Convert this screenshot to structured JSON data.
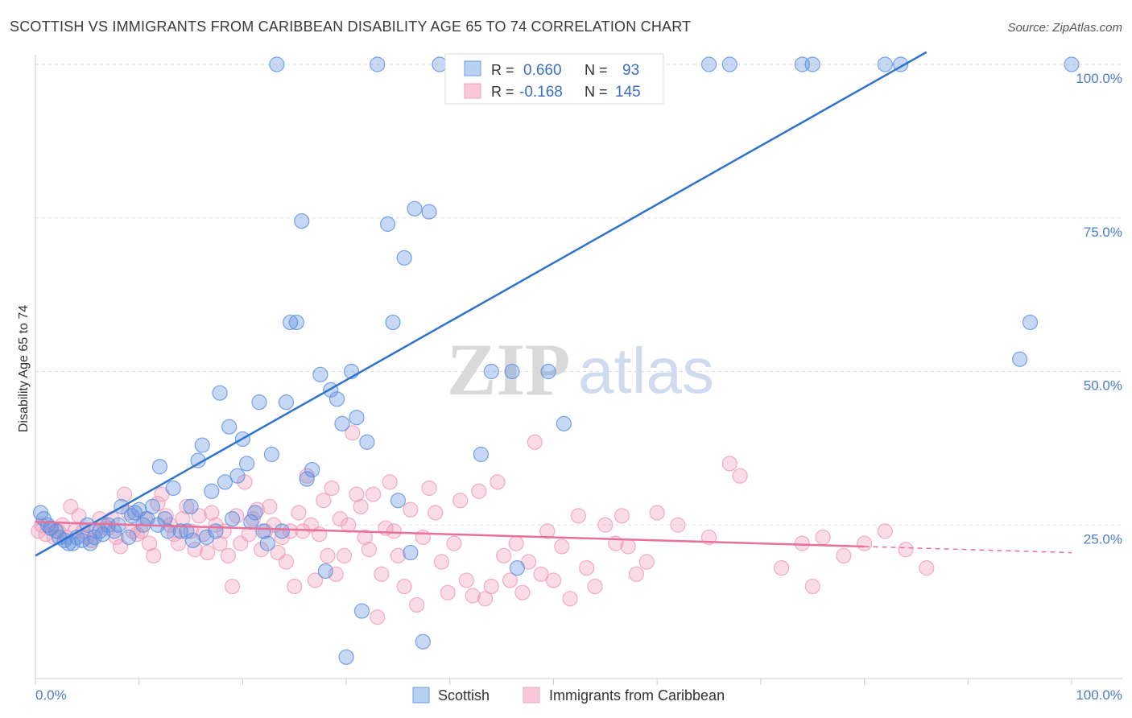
{
  "header": {
    "title": "SCOTTISH VS IMMIGRANTS FROM CARIBBEAN DISABILITY AGE 65 TO 74 CORRELATION CHART",
    "source": "Source: ZipAtlas.com"
  },
  "watermark": {
    "zip": "ZIP",
    "atlas": "atlas"
  },
  "legend_box": {
    "rows": [
      {
        "r_label": "R =",
        "r_value": "0.660",
        "n_label": "N =",
        "n_value": "93",
        "color": "#6b9be0"
      },
      {
        "r_label": "R =",
        "r_value": "-0.168",
        "n_label": "N =",
        "n_value": "145",
        "color": "#f0a0bc"
      }
    ]
  },
  "bottom_legend": [
    {
      "label": "Scottish",
      "color": "#6b9be0"
    },
    {
      "label": "Immigrants from Caribbean",
      "color": "#f0a0bc"
    }
  ],
  "chart_data": {
    "type": "scatter",
    "ylabel": "Disability Age 65 to 74",
    "xlabel": "",
    "x_tick_labels": {
      "left": "0.0%",
      "right": "100.0%"
    },
    "y_tick_labels": [
      "100.0%",
      "75.0%",
      "50.0%",
      "25.0%"
    ],
    "y_ticks": [
      100,
      75,
      50,
      25
    ],
    "xlim": [
      0,
      100
    ],
    "ylim": [
      0,
      100
    ],
    "grid": "horizontal dashed",
    "colors": {
      "scottish": "#5b8ee0",
      "caribbean": "#ef9bb8",
      "scottish_line": "#2f72d0",
      "caribbean_line": "#e8709a"
    },
    "series": [
      {
        "name": "Scottish",
        "trend": {
          "x0": 0,
          "y0": 20,
          "x1": 86,
          "y1": 102
        },
        "points": [
          [
            0.5,
            27
          ],
          [
            0.8,
            26
          ],
          [
            1.2,
            25
          ],
          [
            1.5,
            24.5
          ],
          [
            2,
            24
          ],
          [
            2.3,
            23
          ],
          [
            2.8,
            22.5
          ],
          [
            3.2,
            22
          ],
          [
            3.6,
            22
          ],
          [
            4,
            23
          ],
          [
            4.5,
            22.5
          ],
          [
            5,
            25
          ],
          [
            5.3,
            22
          ],
          [
            5.7,
            23
          ],
          [
            6.2,
            24
          ],
          [
            6.5,
            23.5
          ],
          [
            7,
            25
          ],
          [
            7.6,
            24
          ],
          [
            8,
            25
          ],
          [
            8.3,
            28
          ],
          [
            9,
            23
          ],
          [
            9.3,
            26.5
          ],
          [
            9.6,
            27
          ],
          [
            10,
            27.5
          ],
          [
            10.4,
            25
          ],
          [
            10.8,
            26
          ],
          [
            11.3,
            28
          ],
          [
            11.8,
            25
          ],
          [
            12,
            34.5
          ],
          [
            12.5,
            26
          ],
          [
            12.8,
            24
          ],
          [
            13.3,
            31
          ],
          [
            14,
            24
          ],
          [
            14.6,
            24
          ],
          [
            15,
            28
          ],
          [
            15.2,
            22.5
          ],
          [
            15.7,
            35.5
          ],
          [
            16.1,
            38
          ],
          [
            16.5,
            23
          ],
          [
            17,
            30.5
          ],
          [
            17.4,
            24
          ],
          [
            17.8,
            46.5
          ],
          [
            18.3,
            32
          ],
          [
            18.7,
            41
          ],
          [
            19,
            26
          ],
          [
            19.5,
            33
          ],
          [
            20,
            39
          ],
          [
            20.4,
            35
          ],
          [
            20.8,
            25.5
          ],
          [
            21.2,
            27
          ],
          [
            21.6,
            45
          ],
          [
            22,
            24
          ],
          [
            22.4,
            22
          ],
          [
            22.8,
            36.5
          ],
          [
            23.3,
            100
          ],
          [
            23.8,
            24
          ],
          [
            24.2,
            45
          ],
          [
            24.6,
            58
          ],
          [
            25.2,
            58
          ],
          [
            25.7,
            74.5
          ],
          [
            26.2,
            32.5
          ],
          [
            26.7,
            34
          ],
          [
            27.5,
            49.5
          ],
          [
            28,
            17.5
          ],
          [
            28.5,
            47
          ],
          [
            29.1,
            45.5
          ],
          [
            29.6,
            41.5
          ],
          [
            30,
            3.5
          ],
          [
            30.5,
            50
          ],
          [
            31,
            42.5
          ],
          [
            31.5,
            11
          ],
          [
            32,
            38.5
          ],
          [
            33,
            100
          ],
          [
            34,
            74
          ],
          [
            34.5,
            58
          ],
          [
            35,
            29
          ],
          [
            35.6,
            68.5
          ],
          [
            36.2,
            20.5
          ],
          [
            36.6,
            76.5
          ],
          [
            37.4,
            6
          ],
          [
            38,
            76
          ],
          [
            39,
            100
          ],
          [
            40.5,
            100
          ],
          [
            43,
            36.5
          ],
          [
            44,
            50
          ],
          [
            45,
            100
          ],
          [
            46,
            50
          ],
          [
            46.5,
            18
          ],
          [
            48,
            100
          ],
          [
            49.5,
            50
          ],
          [
            51,
            41.5
          ],
          [
            55,
            100
          ],
          [
            57,
            100
          ],
          [
            59,
            100
          ],
          [
            65,
            100
          ],
          [
            67,
            100
          ],
          [
            74,
            100
          ],
          [
            75,
            100
          ],
          [
            82,
            100
          ],
          [
            83.5,
            100
          ],
          [
            95,
            52
          ],
          [
            96,
            58
          ],
          [
            100,
            100
          ]
        ]
      },
      {
        "name": "Immigrants from Caribbean",
        "trend": {
          "x0": 0,
          "y0": 25.5,
          "x1": 80,
          "y1": 21.5,
          "dash_to_x": 100,
          "dash_to_y": 20.5
        },
        "points": [
          [
            0.3,
            24
          ],
          [
            0.6,
            25
          ],
          [
            1,
            23.5
          ],
          [
            1.4,
            24.5
          ],
          [
            1.8,
            23
          ],
          [
            2.2,
            24
          ],
          [
            2.6,
            25
          ],
          [
            3,
            23
          ],
          [
            3.4,
            28
          ],
          [
            3.8,
            24
          ],
          [
            4.2,
            26.5
          ],
          [
            4.6,
            24
          ],
          [
            5,
            23
          ],
          [
            5.4,
            22.5
          ],
          [
            5.8,
            24
          ],
          [
            6.2,
            26
          ],
          [
            6.6,
            25
          ],
          [
            7,
            24.5
          ],
          [
            7.4,
            26
          ],
          [
            7.8,
            23
          ],
          [
            8.2,
            21.5
          ],
          [
            8.6,
            30
          ],
          [
            9,
            27
          ],
          [
            9.4,
            24
          ],
          [
            9.8,
            23.5
          ],
          [
            10.2,
            24
          ],
          [
            10.6,
            26
          ],
          [
            11,
            22
          ],
          [
            11.4,
            20
          ],
          [
            11.8,
            28.5
          ],
          [
            12.2,
            30
          ],
          [
            12.6,
            26.5
          ],
          [
            13,
            25
          ],
          [
            13.4,
            23.5
          ],
          [
            13.8,
            22
          ],
          [
            14.2,
            26
          ],
          [
            14.6,
            28
          ],
          [
            15,
            24
          ],
          [
            15.4,
            21
          ],
          [
            15.8,
            26.5
          ],
          [
            16.2,
            23.5
          ],
          [
            16.6,
            20.5
          ],
          [
            17,
            27
          ],
          [
            17.4,
            25
          ],
          [
            17.8,
            22
          ],
          [
            18.2,
            24
          ],
          [
            18.6,
            20
          ],
          [
            19,
            15
          ],
          [
            19.4,
            26.5
          ],
          [
            19.8,
            22
          ],
          [
            20.2,
            32
          ],
          [
            20.6,
            23.5
          ],
          [
            21,
            26
          ],
          [
            21.4,
            27.5
          ],
          [
            21.8,
            21
          ],
          [
            22.2,
            24
          ],
          [
            22.6,
            28
          ],
          [
            23,
            25
          ],
          [
            23.4,
            20.5
          ],
          [
            23.8,
            23
          ],
          [
            24.2,
            19
          ],
          [
            24.6,
            24
          ],
          [
            25,
            15
          ],
          [
            25.4,
            27
          ],
          [
            25.8,
            24
          ],
          [
            26.2,
            33
          ],
          [
            26.6,
            25
          ],
          [
            27,
            16
          ],
          [
            27.4,
            23.5
          ],
          [
            27.8,
            29
          ],
          [
            28.2,
            20
          ],
          [
            28.6,
            31
          ],
          [
            29,
            17
          ],
          [
            29.4,
            26
          ],
          [
            29.8,
            20
          ],
          [
            30.2,
            25
          ],
          [
            30.6,
            40
          ],
          [
            31,
            30
          ],
          [
            31.4,
            28
          ],
          [
            31.8,
            23
          ],
          [
            32.2,
            21
          ],
          [
            32.6,
            30
          ],
          [
            33,
            10
          ],
          [
            33.4,
            17
          ],
          [
            33.8,
            24.5
          ],
          [
            34.2,
            32
          ],
          [
            34.6,
            24
          ],
          [
            35,
            20
          ],
          [
            35.6,
            15
          ],
          [
            36.2,
            27.5
          ],
          [
            36.8,
            12
          ],
          [
            37.4,
            23
          ],
          [
            38,
            31
          ],
          [
            38.6,
            27
          ],
          [
            39.2,
            19
          ],
          [
            39.8,
            14
          ],
          [
            40.4,
            22
          ],
          [
            41,
            29
          ],
          [
            41.6,
            16
          ],
          [
            42.2,
            13.5
          ],
          [
            42.8,
            30.5
          ],
          [
            43.4,
            13
          ],
          [
            44,
            15
          ],
          [
            44.6,
            32
          ],
          [
            45.2,
            20
          ],
          [
            45.8,
            16
          ],
          [
            46.4,
            22
          ],
          [
            47,
            14
          ],
          [
            47.6,
            19
          ],
          [
            48.2,
            38.5
          ],
          [
            48.8,
            17
          ],
          [
            49.4,
            24
          ],
          [
            50,
            16
          ],
          [
            50.8,
            21.5
          ],
          [
            51.6,
            13
          ],
          [
            52.4,
            26.5
          ],
          [
            53.2,
            18
          ],
          [
            54,
            15
          ],
          [
            55,
            25
          ],
          [
            56,
            22
          ],
          [
            56.6,
            26.5
          ],
          [
            57.2,
            21.5
          ],
          [
            58,
            17
          ],
          [
            59,
            19
          ],
          [
            60,
            27
          ],
          [
            62,
            25
          ],
          [
            65,
            23
          ],
          [
            67,
            35
          ],
          [
            68,
            33
          ],
          [
            72,
            18
          ],
          [
            74,
            22
          ],
          [
            75,
            15
          ],
          [
            76,
            23
          ],
          [
            78,
            20
          ],
          [
            80,
            22
          ],
          [
            82,
            24
          ],
          [
            84,
            21
          ],
          [
            86,
            18
          ]
        ]
      }
    ]
  }
}
